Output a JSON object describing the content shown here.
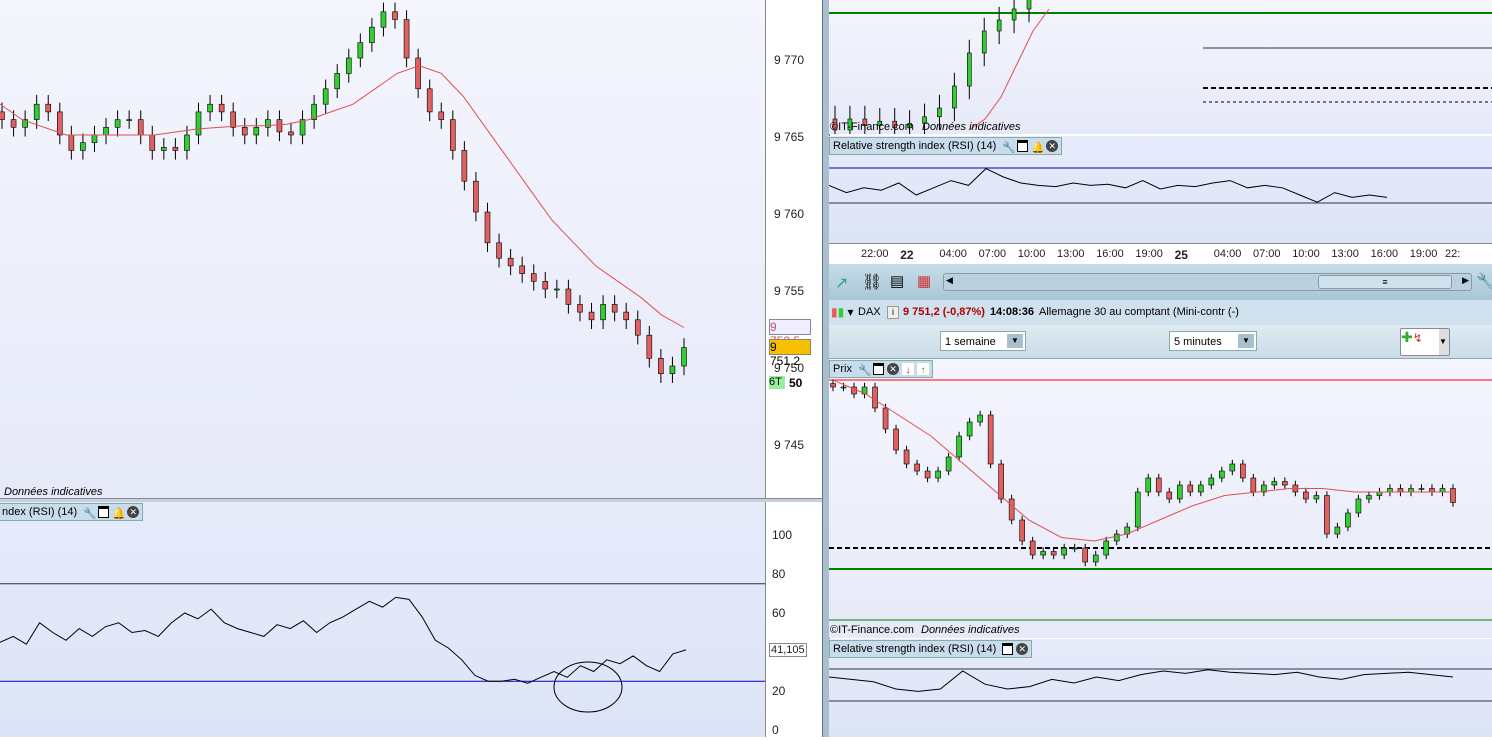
{
  "left": {
    "yaxis": {
      "min": 9742,
      "max": 9775,
      "ticks": [
        "9 770",
        "9 765",
        "9 760",
        "9 755",
        "9 750",
        "9 745"
      ],
      "tick_values": [
        9770,
        9765,
        9760,
        9755,
        9750,
        9745
      ]
    },
    "price_tags": {
      "ma": "9 752,5",
      "last": "9 751,2",
      "timer": "6T",
      "partial": "50"
    },
    "closes": [
      9766,
      9765.5,
      9766,
      9767,
      9766.5,
      9765,
      9764,
      9764.5,
      9765,
      9765.5,
      9766,
      9766,
      9765,
      9764,
      9764.2,
      9764,
      9765,
      9766.5,
      9767,
      9766.5,
      9765.5,
      9765,
      9765.5,
      9766,
      9765.2,
      9765,
      9766,
      9767,
      9768,
      9769,
      9770,
      9771,
      9772,
      9773,
      9772.5,
      9770,
      9768,
      9766.5,
      9766,
      9764,
      9762,
      9760,
      9758,
      9757,
      9756.5,
      9756,
      9755.5,
      9755,
      9755,
      9754,
      9753.5,
      9753,
      9754,
      9753.5,
      9753,
      9752,
      9750.5,
      9749.5,
      9750,
      9751.2
    ],
    "ma": [
      9767,
      9766,
      9765.5,
      9765,
      9765,
      9765,
      9765,
      9765,
      9765.2,
      9765.4,
      9765.5,
      9765.6,
      9765.6,
      9765.7,
      9766,
      9766.5,
      9767,
      9768,
      9769,
      9769.5,
      9769,
      9767.5,
      9765.5,
      9763.5,
      9761.5,
      9759.5,
      9758,
      9756.5,
      9755.5,
      9754.5,
      9753.3,
      9752.5
    ],
    "footer": "Données indicatives",
    "rsi": {
      "title": "ndex (RSI) (14)",
      "ticks": [
        "100",
        "80",
        "60",
        "41,105",
        "20",
        "0"
      ],
      "tick_values": [
        100,
        80,
        60,
        41.1,
        20,
        0
      ],
      "levels": [
        75,
        25
      ],
      "values": [
        45,
        48,
        44,
        55,
        50,
        46,
        52,
        48,
        53,
        55,
        50,
        51,
        48,
        55,
        60,
        57,
        62,
        55,
        52,
        50,
        48,
        54,
        52,
        56,
        50,
        55,
        58,
        62,
        66,
        63,
        68,
        67,
        58,
        46,
        42,
        36,
        28,
        25,
        25,
        26,
        24,
        27,
        30,
        27,
        33,
        30,
        36,
        34,
        38,
        33,
        30,
        39,
        41.1
      ]
    }
  },
  "right_top": {
    "footer_brand": "©IT-Finance.com",
    "footer": "Données indicatives",
    "rsi_title": "Relative strength index (RSI) (14)",
    "time_labels": [
      "22:00",
      "22",
      "04:00",
      "07:00",
      "10:00",
      "13:00",
      "16:00",
      "19:00",
      "25",
      "04:00",
      "07:00",
      "10:00",
      "13:00",
      "16:00",
      "19:00",
      "22:"
    ]
  },
  "toolbar": {
    "scroll_grip": "≡"
  },
  "instrument": {
    "symbol": "DAX",
    "price": "9 751,2 (-0,87%)",
    "time": "14:08:36",
    "name": "Allemagne 30 au comptant (Mini-contr (-)",
    "price_color": "#b00000"
  },
  "controls": {
    "period": "1 semaine",
    "interval": "5 minutes"
  },
  "right_bottom": {
    "price_title": "Prix",
    "closes": [
      9772,
      9772,
      9771,
      9772,
      9769,
      9766,
      9763,
      9761,
      9760,
      9759,
      9760,
      9762,
      9765,
      9767,
      9768,
      9761,
      9756,
      9753,
      9750,
      9748,
      9748.5,
      9748,
      9749,
      9749,
      9747,
      9748,
      9750,
      9751,
      9752,
      9757,
      9759,
      9757,
      9756,
      9758,
      9757,
      9758,
      9759,
      9760,
      9761,
      9759,
      9757,
      9758,
      9758.5,
      9758,
      9757,
      9756,
      9756.5,
      9751,
      9752,
      9754,
      9756,
      9756.5,
      9757,
      9757.5,
      9757,
      9757.5,
      9757.5,
      9757,
      9757.5,
      9755.5
    ],
    "ma": [
      9773,
      9771,
      9768,
      9765,
      9761,
      9757,
      9753,
      9750.5,
      9750,
      9751,
      9753,
      9755,
      9756.5,
      9757,
      9757.5,
      9757.5,
      9757,
      9757,
      9757,
      9757
    ],
    "levels": {
      "red": 9773,
      "dashed": 9749,
      "green": 9746
    },
    "footer_brand": "©IT-Finance.com",
    "footer": "Données indicatives",
    "rsi_title": "Relative strength index (RSI) (14)",
    "rsi": [
      50,
      48,
      46,
      40,
      38,
      40,
      55,
      44,
      40,
      42,
      48,
      45,
      50,
      47,
      52,
      55,
      53,
      56,
      54,
      53,
      52,
      54,
      50,
      48,
      52,
      53,
      54,
      52,
      50
    ]
  },
  "colors": {
    "up": "#33cc33",
    "down": "#e06060",
    "ma": "#e05050",
    "rsi_level": "#0000c0",
    "green_level": "#008000",
    "red_level": "#ff0000"
  }
}
